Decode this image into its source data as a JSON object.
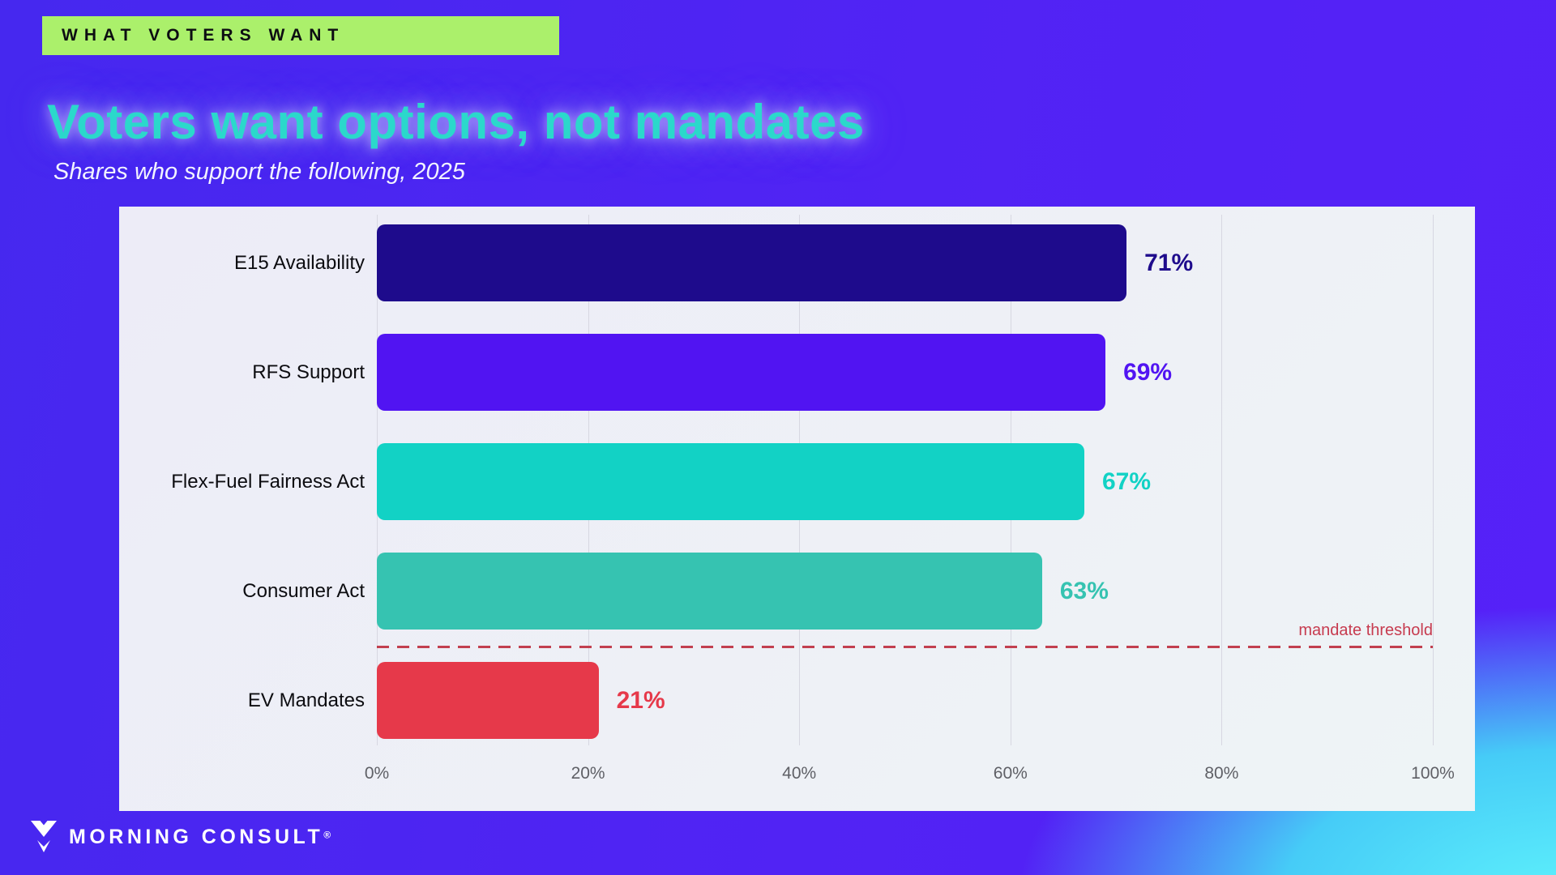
{
  "badge": {
    "label": "WHAT VOTERS WANT"
  },
  "title": "Voters want options, not mandates",
  "subtitle": "Shares who support the following, 2025",
  "footer": {
    "brand": "MORNING CONSULT",
    "registered": "®"
  },
  "colors": {
    "badge_bg": "#abf06b",
    "title_text": "#2bd8cb",
    "background_violet": "#5123f4",
    "background_cyan": "#5ff3fc",
    "panel_bg": "#eef0f6",
    "threshold_red": "#c73b4f"
  },
  "chart_data": {
    "type": "bar",
    "orientation": "horizontal",
    "title": "Voters want options, not mandates",
    "subtitle": "Shares who support the following, 2025",
    "categories": [
      "E15 Availability",
      "RFS Support",
      "Flex-Fuel Fairness Act",
      "Consumer Act",
      "EV Mandates"
    ],
    "values": [
      71,
      69,
      67,
      63,
      21
    ],
    "value_labels": [
      "71%",
      "69%",
      "67%",
      "63%",
      "21%"
    ],
    "bar_colors": [
      "#1e0b8c",
      "#5114f2",
      "#12d2c5",
      "#36c3b1",
      "#e6394a"
    ],
    "x_ticks": [
      0,
      20,
      40,
      60,
      80,
      100
    ],
    "x_tick_labels": [
      "0%",
      "20%",
      "40%",
      "60%",
      "80%",
      "100%"
    ],
    "xlim": [
      0,
      100
    ],
    "grid": true,
    "legend": false,
    "annotation": {
      "label": "mandate threshold",
      "value": null,
      "position": "between Consumer Act and EV Mandates",
      "color": "#c73b4f",
      "style": "dashed"
    }
  }
}
